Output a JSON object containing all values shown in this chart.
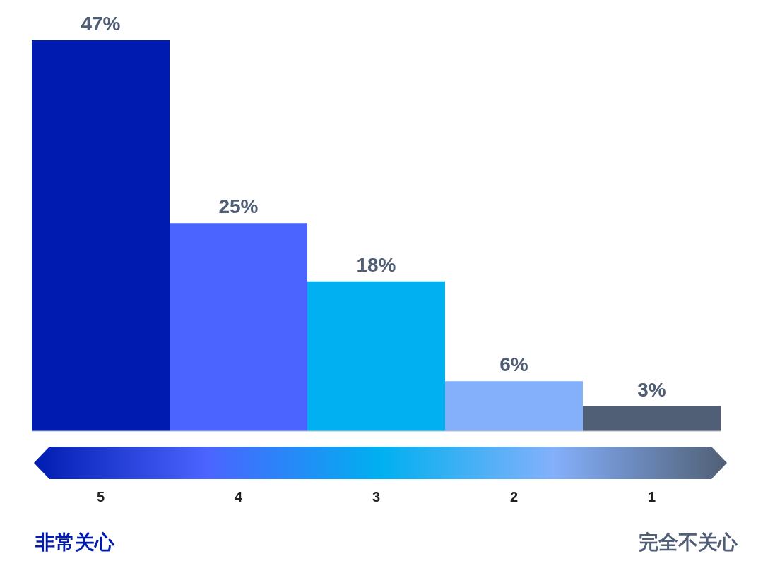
{
  "chart_data": {
    "type": "bar",
    "categories": [
      "5",
      "4",
      "3",
      "2",
      "1"
    ],
    "values": [
      47,
      25,
      18,
      6,
      3
    ],
    "colors": [
      "#001cb0",
      "#4b64ff",
      "#00b0f0",
      "#84b0fb",
      "#505f75"
    ],
    "data_labels": true,
    "value_labels": [
      "47%",
      "25%",
      "18%",
      "6%",
      "3%"
    ],
    "annotations": [
      "非常关心",
      "完全不关心"
    ]
  }
}
